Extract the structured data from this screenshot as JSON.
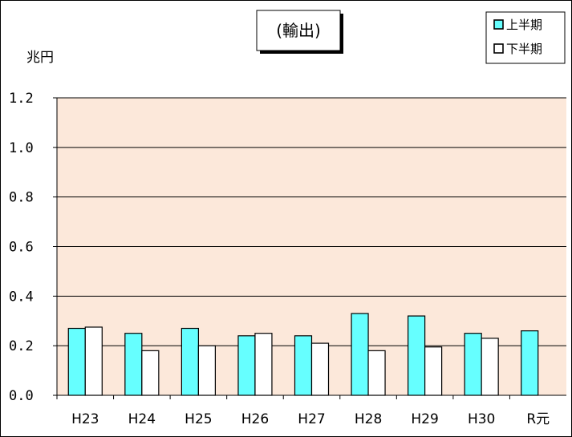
{
  "chart_data": {
    "type": "bar",
    "title": "(輸出)",
    "ylabel": "兆円",
    "ylim": [
      0,
      1.2
    ],
    "yticks": [
      "0.0",
      "0.2",
      "0.4",
      "0.6",
      "0.8",
      "1.0",
      "1.2"
    ],
    "categories": [
      "H23",
      "H24",
      "H25",
      "H26",
      "H27",
      "H28",
      "H29",
      "H30",
      "R元"
    ],
    "series": [
      {
        "name": "上半期",
        "color": "#66FFFF",
        "values": [
          0.27,
          0.25,
          0.27,
          0.24,
          0.24,
          0.33,
          0.32,
          0.25,
          0.26
        ]
      },
      {
        "name": "下半期",
        "color": "#FFFFFF",
        "values": [
          0.275,
          0.18,
          0.2,
          0.25,
          0.21,
          0.18,
          0.195,
          0.23,
          null
        ]
      }
    ],
    "plot_background": "#FCE8DA",
    "grid": true,
    "legend_position": "top-right"
  }
}
